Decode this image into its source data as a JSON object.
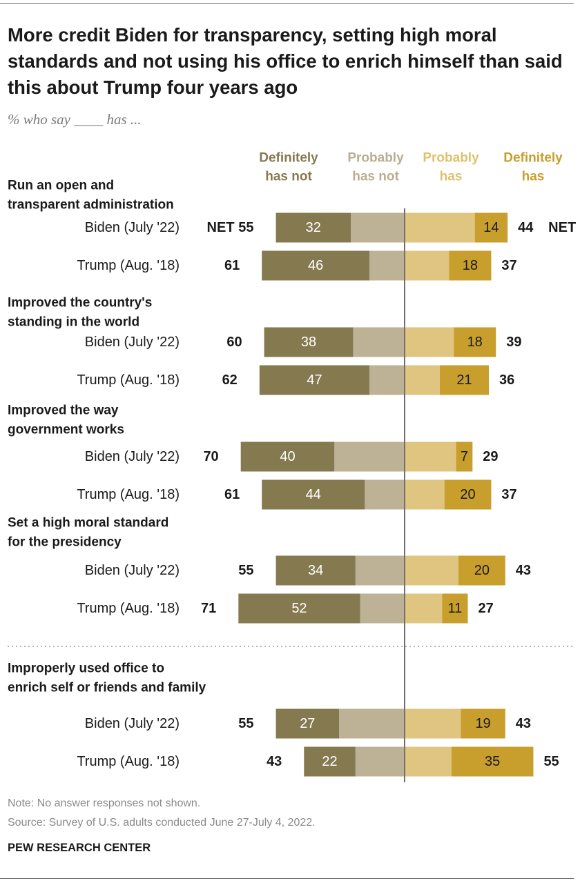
{
  "title": "More credit Biden for transparency, setting high moral standards and not using his office to enrich himself than said this about Trump four years ago",
  "subtitle": "% who say ____ has ...",
  "note": "Note: No answer responses not shown.",
  "source": "Source: Survey of U.S. adults conducted June 27-July 4, 2022.",
  "branding": "PEW RESEARCH CENTER",
  "net_label": "NET",
  "colors": {
    "definitely_not": "#857950",
    "probably_not": "#bdb296",
    "probably_has": "#dfc57f",
    "definitely_has": "#c89e2d",
    "axis": "#6f6f6f",
    "label_light": "#ffffff",
    "label_dark": "#1a1a1a"
  },
  "chart_data": {
    "type": "bar",
    "orientation": "horizontal-diverging",
    "legend": [
      [
        "Definitely",
        "has not"
      ],
      [
        "Probably",
        "has not"
      ],
      [
        "Probably",
        "has"
      ],
      [
        "Definitely",
        "has"
      ]
    ],
    "groups": [
      {
        "label": [
          "Run an open and",
          "transparent administration"
        ],
        "rows": [
          {
            "name": "Biden (July '22)",
            "definitely_not": 32,
            "probably_not": 23,
            "probably_has": 30,
            "definitely_has": 14,
            "net_not": 55,
            "net_has": 44
          },
          {
            "name": "Trump (Aug. '18)",
            "definitely_not": 46,
            "probably_not": 15,
            "probably_has": 19,
            "definitely_has": 18,
            "net_not": 61,
            "net_has": 37
          }
        ]
      },
      {
        "label": [
          "Improved the country's",
          "standing in the world"
        ],
        "rows": [
          {
            "name": "Biden (July '22)",
            "definitely_not": 38,
            "probably_not": 22,
            "probably_has": 21,
            "definitely_has": 18,
            "net_not": 60,
            "net_has": 39
          },
          {
            "name": "Trump (Aug. '18)",
            "definitely_not": 47,
            "probably_not": 15,
            "probably_has": 15,
            "definitely_has": 21,
            "net_not": 62,
            "net_has": 36
          }
        ]
      },
      {
        "label": [
          "Improved the way",
          "government works"
        ],
        "rows": [
          {
            "name": "Biden (July '22)",
            "definitely_not": 40,
            "probably_not": 30,
            "probably_has": 22,
            "definitely_has": 7,
            "net_not": 70,
            "net_has": 29
          },
          {
            "name": "Trump (Aug. '18)",
            "definitely_not": 44,
            "probably_not": 17,
            "probably_has": 17,
            "definitely_has": 20,
            "net_not": 61,
            "net_has": 37
          }
        ]
      },
      {
        "label": [
          "Set a high moral standard",
          "for the presidency"
        ],
        "rows": [
          {
            "name": "Biden (July '22)",
            "definitely_not": 34,
            "probably_not": 21,
            "probably_has": 23,
            "definitely_has": 20,
            "net_not": 55,
            "net_has": 43
          },
          {
            "name": "Trump (Aug. '18)",
            "definitely_not": 52,
            "probably_not": 19,
            "probably_has": 16,
            "definitely_has": 11,
            "net_not": 71,
            "net_has": 27
          }
        ]
      },
      {
        "label": [
          "Improperly used office to",
          "enrich self or friends and family"
        ],
        "rows": [
          {
            "name": "Biden (July '22)",
            "definitely_not": 27,
            "probably_not": 28,
            "probably_has": 24,
            "definitely_has": 19,
            "net_not": 55,
            "net_has": 43
          },
          {
            "name": "Trump (Aug. '18)",
            "definitely_not": 22,
            "probably_not": 21,
            "probably_has": 20,
            "definitely_has": 35,
            "net_not": 43,
            "net_has": 55
          }
        ]
      }
    ]
  }
}
